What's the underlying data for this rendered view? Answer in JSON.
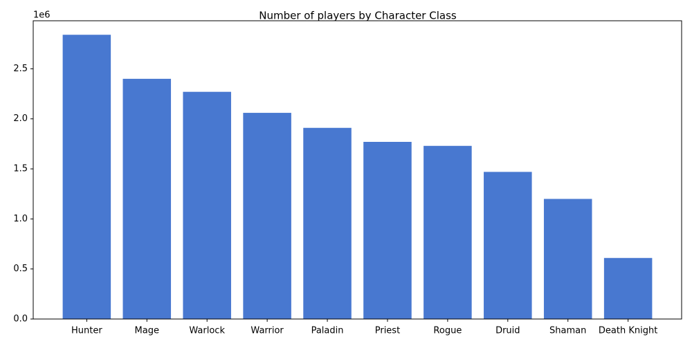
{
  "chart_data": {
    "type": "bar",
    "title": "Number of players by Character Class",
    "categories": [
      "Hunter",
      "Mage",
      "Warlock",
      "Warrior",
      "Paladin",
      "Priest",
      "Rogue",
      "Druid",
      "Shaman",
      "Death Knight"
    ],
    "values": [
      2840000,
      2400000,
      2270000,
      2060000,
      1910000,
      1770000,
      1730000,
      1470000,
      1200000,
      610000
    ],
    "color": "#4878d0",
    "ylim": [
      0,
      2980000
    ],
    "yticks": [
      {
        "value": 0,
        "label": "0.0"
      },
      {
        "value": 500000,
        "label": "0.5"
      },
      {
        "value": 1000000,
        "label": "1.0"
      },
      {
        "value": 1500000,
        "label": "1.5"
      },
      {
        "value": 2000000,
        "label": "2.0"
      },
      {
        "value": 2500000,
        "label": "2.5"
      }
    ],
    "y_offset_label": "1e6"
  }
}
